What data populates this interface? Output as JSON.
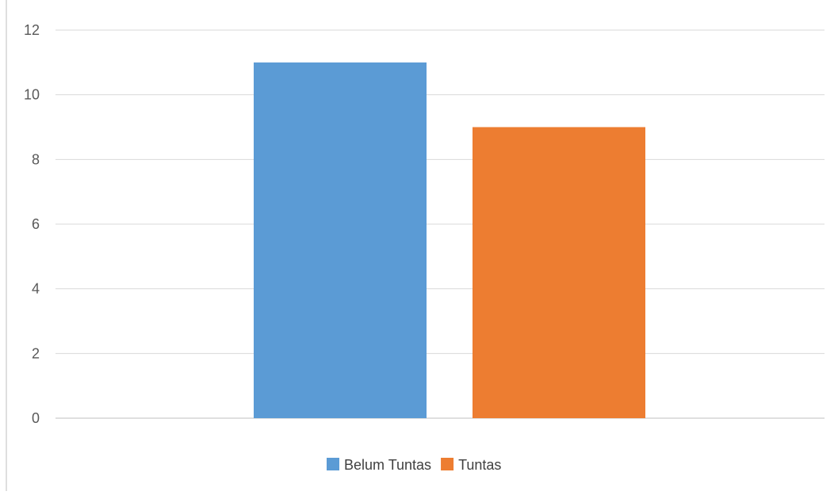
{
  "chart_data": {
    "type": "bar",
    "categories": [
      ""
    ],
    "series": [
      {
        "name": "Belum Tuntas",
        "values": [
          11
        ],
        "color": "#5B9BD5"
      },
      {
        "name": "Tuntas",
        "values": [
          9
        ],
        "color": "#ED7D31"
      }
    ],
    "title": "",
    "xlabel": "",
    "ylabel": "",
    "ylim": [
      0,
      12
    ],
    "yticks": [
      "0",
      "2",
      "4",
      "6",
      "8",
      "10",
      "12"
    ],
    "grid": true,
    "legend_position": "bottom"
  },
  "colors": {
    "grid": "#D9D9D9",
    "axis": "#BFBFBF",
    "tick_text": "#595959",
    "legend_text": "#404040",
    "frame": "#BFBFBF"
  }
}
